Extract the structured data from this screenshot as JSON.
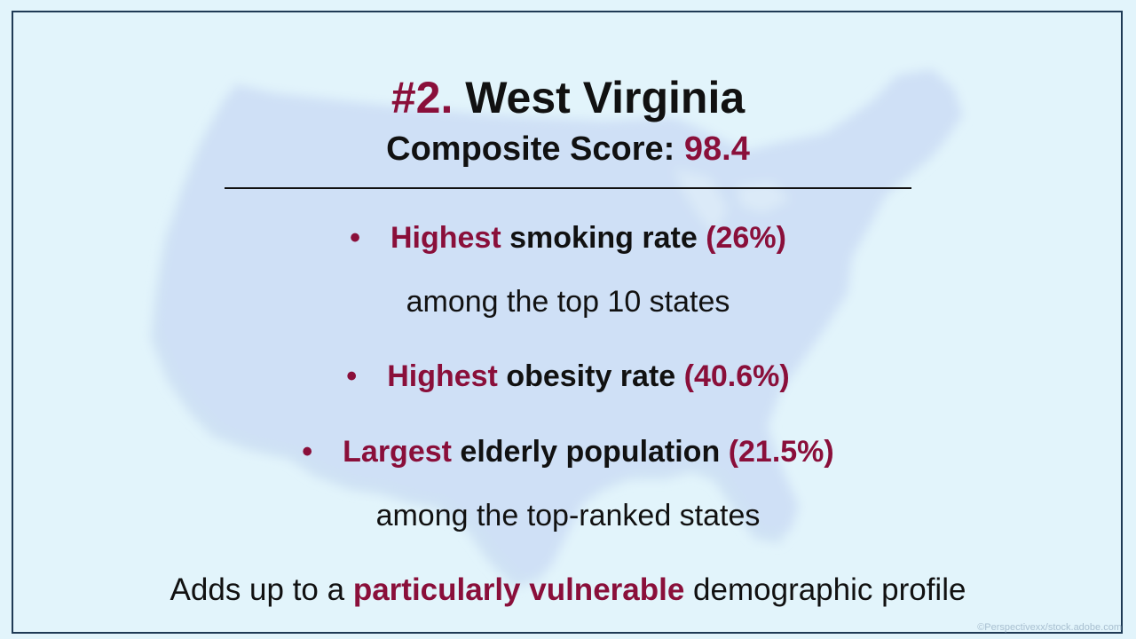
{
  "title": {
    "rank": "#2.",
    "state": "West Virginia"
  },
  "subtitle": {
    "label": "Composite Score:",
    "score": "98.4"
  },
  "bullets": [
    {
      "marker": "•",
      "highlight": "Highest",
      "text": "smoking rate",
      "value": "(26%)",
      "continuation": "among the top 10 states"
    },
    {
      "marker": "•",
      "highlight": "Highest",
      "text": "obesity rate",
      "value": "(40.6%)"
    },
    {
      "marker": "•",
      "highlight": "Largest",
      "text": "elderly population",
      "value": "(21.5%)",
      "continuation": "among the top-ranked states"
    }
  ],
  "closing": {
    "before": "Adds up to a",
    "highlight": "particularly vulnerable",
    "after": "demographic profile"
  },
  "credit": "©Perspectivexx/stock.adobe.com",
  "colors": {
    "accent": "#8a0f3a",
    "text": "#111111",
    "background": "#e2f4fb",
    "map": "#cfe0f6",
    "frame": "#1f3a55"
  },
  "background_image": "map-of-united-states"
}
